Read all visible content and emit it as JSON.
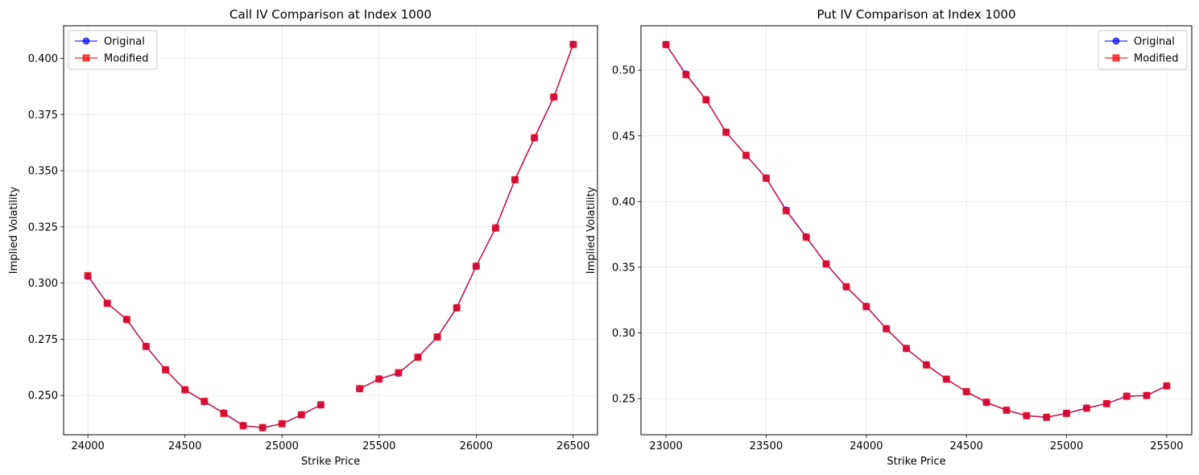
{
  "chart_data": [
    {
      "type": "line",
      "title": "Call IV Comparison at Index 1000",
      "xlabel": "Strike Price",
      "ylabel": "Implied Volatility",
      "xlim": [
        23875,
        26625
      ],
      "ylim": [
        0.2325,
        0.4145
      ],
      "xticks": [
        24000,
        24500,
        25000,
        25500,
        26000,
        26500
      ],
      "yticks": [
        0.25,
        0.275,
        0.3,
        0.325,
        0.35,
        0.375,
        0.4
      ],
      "ytick_labels": [
        "0.250",
        "0.275",
        "0.300",
        "0.325",
        "0.350",
        "0.375",
        "0.400"
      ],
      "grid": true,
      "legend_position": "upper-left",
      "series": [
        {
          "name": "Original",
          "color": "#0000ff",
          "marker": "circle",
          "x": [
            24000,
            24100,
            24200,
            24300,
            24400,
            24500,
            24600,
            24700,
            24800,
            24900,
            25000,
            25100,
            25200,
            null,
            25400,
            25500,
            25600,
            25700,
            25800,
            25900,
            26000,
            26100,
            26200,
            26300,
            26400,
            26500
          ],
          "values": [
            0.303,
            0.291,
            0.2838,
            0.2718,
            0.2614,
            0.2525,
            0.2472,
            0.2422,
            0.2366,
            0.2356,
            0.2374,
            0.2414,
            0.2458,
            null,
            0.253,
            0.2573,
            0.2599,
            0.267,
            0.276,
            0.289,
            0.3075,
            0.3245,
            0.346,
            0.3645,
            0.3828,
            0.4062
          ]
        },
        {
          "name": "Modified",
          "color": "#ff0000",
          "marker": "square",
          "x": [
            24000,
            24100,
            24200,
            24300,
            24400,
            24500,
            24600,
            24700,
            24800,
            24900,
            25000,
            25100,
            25200,
            null,
            25400,
            25500,
            25600,
            25700,
            25800,
            25900,
            26000,
            26100,
            26200,
            26300,
            26400,
            26500
          ],
          "values": [
            0.3033,
            0.291,
            0.2838,
            0.2718,
            0.2614,
            0.2525,
            0.2474,
            0.242,
            0.2365,
            0.2357,
            0.2374,
            0.2414,
            0.2458,
            null,
            0.253,
            0.2573,
            0.2601,
            0.267,
            0.276,
            0.289,
            0.3075,
            0.3245,
            0.346,
            0.3647,
            0.3828,
            0.4062
          ]
        }
      ]
    },
    {
      "type": "line",
      "title": "Put IV Comparison at Index 1000",
      "xlabel": "Strike Price",
      "ylabel": "Implied Volatility",
      "xlim": [
        22875,
        25625
      ],
      "ylim": [
        0.2225,
        0.5338
      ],
      "xticks": [
        23000,
        23500,
        24000,
        24500,
        25000,
        25500
      ],
      "yticks": [
        0.25,
        0.3,
        0.35,
        0.4,
        0.45,
        0.5
      ],
      "ytick_labels": [
        "0.25",
        "0.30",
        "0.35",
        "0.40",
        "0.45",
        "0.50"
      ],
      "grid": true,
      "legend_position": "upper-right",
      "series": [
        {
          "name": "Original",
          "color": "#0000ff",
          "marker": "circle",
          "x": [
            23000,
            23100,
            23200,
            23300,
            23400,
            23500,
            23600,
            23700,
            23800,
            23900,
            24000,
            24100,
            24200,
            24300,
            24400,
            24500,
            24600,
            24700,
            24800,
            24900,
            25000,
            25100,
            25200,
            25300,
            25400,
            25500
          ],
          "values": [
            0.5195,
            0.497,
            0.4775,
            0.4528,
            0.4352,
            0.4178,
            0.3935,
            0.3732,
            0.3525,
            0.335,
            0.3203,
            0.3032,
            0.2882,
            0.2758,
            0.2648,
            0.2553,
            0.247,
            0.2412,
            0.237,
            0.2358,
            0.2388,
            0.2428,
            0.2462,
            0.2518,
            0.2524,
            0.2597
          ]
        },
        {
          "name": "Modified",
          "color": "#ff0000",
          "marker": "square",
          "x": [
            23000,
            23100,
            23200,
            23300,
            23400,
            23500,
            23600,
            23700,
            23800,
            23900,
            24000,
            24100,
            24200,
            24300,
            24400,
            24500,
            24600,
            24700,
            24800,
            24900,
            25000,
            25100,
            25200,
            25300,
            25400,
            25500
          ],
          "values": [
            0.5195,
            0.4965,
            0.4775,
            0.4528,
            0.4352,
            0.4178,
            0.393,
            0.3728,
            0.3525,
            0.3352,
            0.32,
            0.3032,
            0.2882,
            0.2756,
            0.2648,
            0.2553,
            0.2473,
            0.2412,
            0.237,
            0.2358,
            0.2388,
            0.2427,
            0.2462,
            0.2518,
            0.2524,
            0.2597
          ]
        }
      ]
    }
  ]
}
